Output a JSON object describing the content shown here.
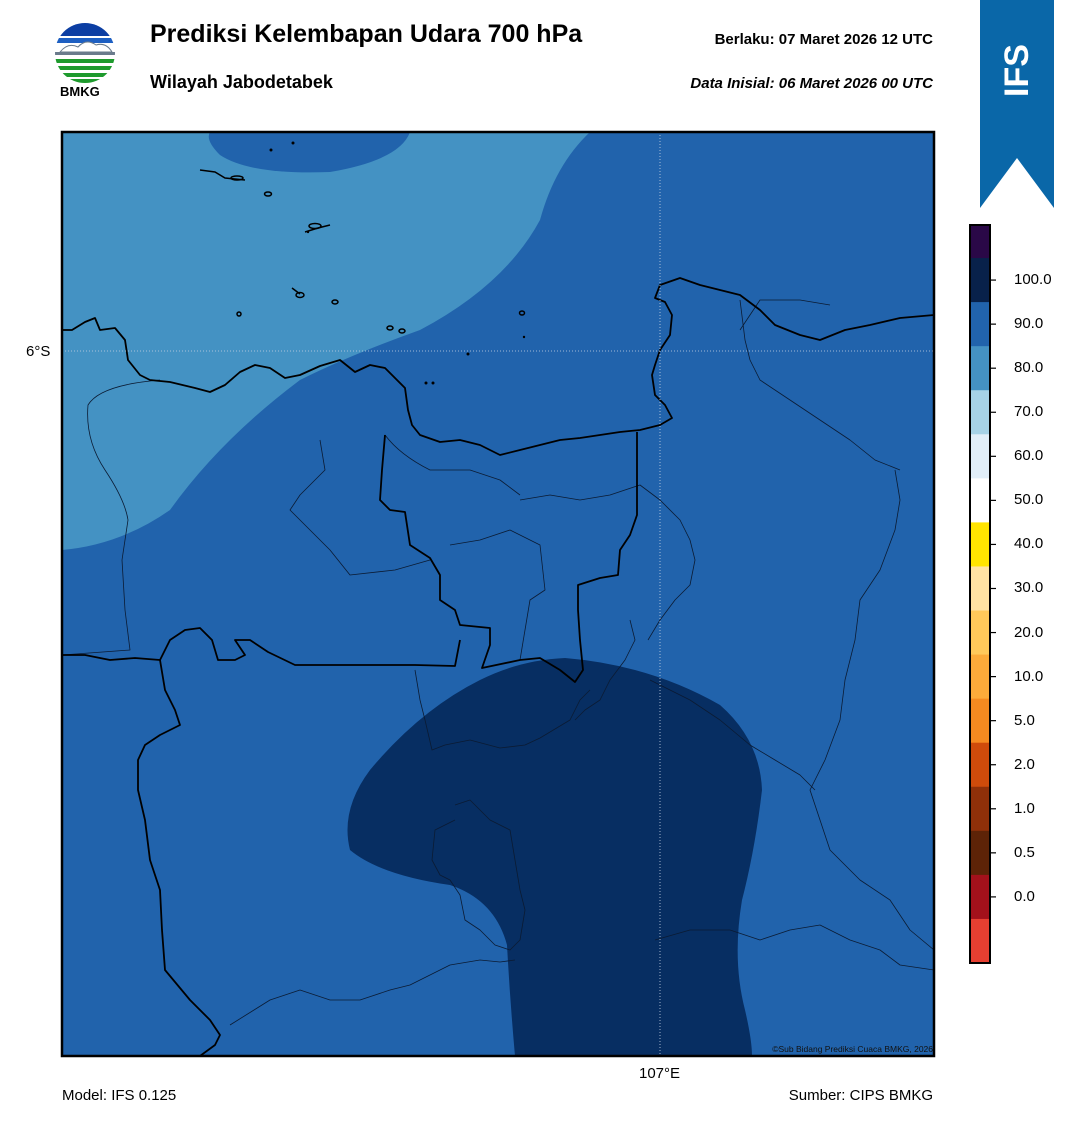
{
  "header": {
    "title": "Prediksi Kelembapan Udara 700 hPa",
    "subtitle": "Wilayah Jabodetabek",
    "valid_label": "Berlaku:  07 Maret 2026 12 UTC",
    "init_label": "Data Inisial:  06 Maret 2026 00 UTC"
  },
  "logo": {
    "text": "BMKG",
    "icon": "bmkg-logo-icon"
  },
  "ribbon": {
    "text": "IFS",
    "color": "#0a67a8"
  },
  "map": {
    "lat_label": "6°S",
    "lon_label": "107°E",
    "colors": {
      "light": "#4492c3",
      "mid": "#2163ac",
      "dark": "#072e62"
    }
  },
  "footer": {
    "model": "Model: IFS 0.125",
    "source": "Sumber: CIPS BMKG",
    "credit": "©Sub Bidang Prediksi Cuaca BMKG, 2026"
  },
  "colorbar": {
    "labels": [
      "100.0",
      "90.0",
      "80.0",
      "70.0",
      "60.0",
      "50.0",
      "40.0",
      "30.0",
      "20.0",
      "10.0",
      "5.0",
      "2.0",
      "1.0",
      "0.5",
      "0.0"
    ],
    "colors": [
      "#2a0847",
      "#08214a",
      "#2163ac",
      "#4492c3",
      "#a6d2e6",
      "#e1eef8",
      "#ffffff",
      "#ffe400",
      "#ffe3a3",
      "#ffc95a",
      "#fcab3a",
      "#f58a20",
      "#cf4b0b",
      "#8f3009",
      "#5d2307",
      "#a3111b",
      "#e63f31"
    ]
  }
}
